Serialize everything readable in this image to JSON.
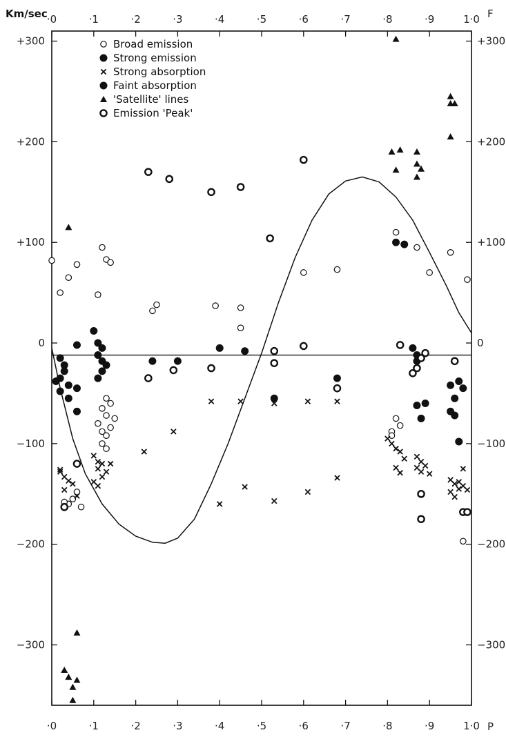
{
  "chart_data": {
    "type": "scatter",
    "title": "",
    "y_unit": "Km/sec",
    "x_end_top": "F",
    "x_end_bottom": "P",
    "xlim": [
      0,
      1.0
    ],
    "ylim": [
      -360,
      310
    ],
    "x_ticks": [
      {
        "v": 0.0,
        "label": "·0"
      },
      {
        "v": 0.1,
        "label": "·1"
      },
      {
        "v": 0.2,
        "label": "·2"
      },
      {
        "v": 0.3,
        "label": "·3"
      },
      {
        "v": 0.4,
        "label": "·4"
      },
      {
        "v": 0.5,
        "label": "·5"
      },
      {
        "v": 0.6,
        "label": "·6"
      },
      {
        "v": 0.7,
        "label": "·7"
      },
      {
        "v": 0.8,
        "label": "·8"
      },
      {
        "v": 0.9,
        "label": "·9"
      },
      {
        "v": 1.0,
        "label": "1·0"
      }
    ],
    "y_ticks": [
      {
        "v": 300,
        "label": "+300"
      },
      {
        "v": 200,
        "label": "+200"
      },
      {
        "v": 100,
        "label": "+100"
      },
      {
        "v": 0,
        "label": "0"
      },
      {
        "v": -100,
        "label": "−100"
      },
      {
        "v": -200,
        "label": "−200"
      },
      {
        "v": -300,
        "label": "−300"
      }
    ],
    "right_y_ticks": [
      {
        "v": 300,
        "label": "+300"
      },
      {
        "v": 200,
        "label": "+200"
      },
      {
        "v": 100,
        "label": "+100"
      },
      {
        "v": 0,
        "label": "0"
      },
      {
        "v": -100,
        "label": "−100"
      },
      {
        "v": -200,
        "label": "−200"
      },
      {
        "v": -300,
        "label": "−300"
      }
    ],
    "systemic_velocity": -12,
    "velocity_curve": [
      [
        0.0,
        -5
      ],
      [
        0.02,
        -45
      ],
      [
        0.05,
        -95
      ],
      [
        0.08,
        -130
      ],
      [
        0.12,
        -160
      ],
      [
        0.16,
        -180
      ],
      [
        0.2,
        -192
      ],
      [
        0.24,
        -198
      ],
      [
        0.27,
        -199
      ],
      [
        0.3,
        -194
      ],
      [
        0.34,
        -175
      ],
      [
        0.38,
        -140
      ],
      [
        0.42,
        -100
      ],
      [
        0.46,
        -55
      ],
      [
        0.5,
        -10
      ],
      [
        0.54,
        40
      ],
      [
        0.58,
        85
      ],
      [
        0.62,
        122
      ],
      [
        0.66,
        148
      ],
      [
        0.7,
        161
      ],
      [
        0.74,
        165
      ],
      [
        0.78,
        160
      ],
      [
        0.82,
        145
      ],
      [
        0.86,
        122
      ],
      [
        0.9,
        90
      ],
      [
        0.94,
        57
      ],
      [
        0.97,
        30
      ],
      [
        1.0,
        10
      ]
    ],
    "legend": [
      {
        "marker": "circle-open",
        "label": "Broad emission"
      },
      {
        "marker": "circle-filled",
        "label": "Strong emission"
      },
      {
        "marker": "cross",
        "label": "Strong absorption"
      },
      {
        "marker": "circle-filled",
        "label": "Faint absorption"
      },
      {
        "marker": "triangle",
        "label": "'Satellite' lines"
      },
      {
        "marker": "circle-thick",
        "label": "Emission 'Peak'"
      }
    ],
    "series": [
      {
        "marker": "circle-open",
        "points": [
          [
            0.0,
            82
          ],
          [
            0.02,
            50
          ],
          [
            0.04,
            65
          ],
          [
            0.06,
            78
          ],
          [
            0.11,
            48
          ],
          [
            0.12,
            95
          ],
          [
            0.13,
            83
          ],
          [
            0.14,
            80
          ],
          [
            0.24,
            32
          ],
          [
            0.25,
            38
          ],
          [
            0.39,
            37
          ],
          [
            0.45,
            35
          ],
          [
            0.45,
            15
          ],
          [
            0.6,
            70
          ],
          [
            0.68,
            73
          ],
          [
            0.82,
            110
          ],
          [
            0.82,
            -75
          ],
          [
            0.83,
            -82
          ],
          [
            0.81,
            -88
          ],
          [
            0.81,
            -92
          ],
          [
            0.87,
            95
          ],
          [
            0.9,
            70
          ],
          [
            0.95,
            90
          ],
          [
            0.99,
            63
          ],
          [
            0.13,
            -55
          ],
          [
            0.14,
            -60
          ],
          [
            0.12,
            -65
          ],
          [
            0.13,
            -72
          ],
          [
            0.11,
            -80
          ],
          [
            0.14,
            -84
          ],
          [
            0.12,
            -88
          ],
          [
            0.13,
            -92
          ],
          [
            0.12,
            -100
          ],
          [
            0.13,
            -105
          ],
          [
            0.15,
            -75
          ],
          [
            0.06,
            -148
          ],
          [
            0.04,
            -160
          ],
          [
            0.05,
            -155
          ],
          [
            0.03,
            -158
          ],
          [
            0.07,
            -163
          ],
          [
            0.98,
            -197
          ]
        ]
      },
      {
        "marker": "circle-filled",
        "points": [
          [
            0.02,
            -15
          ],
          [
            0.03,
            -22
          ],
          [
            0.03,
            -28
          ],
          [
            0.02,
            -35
          ],
          [
            0.01,
            -38
          ],
          [
            0.04,
            -42
          ],
          [
            0.02,
            -48
          ],
          [
            0.04,
            -55
          ],
          [
            0.06,
            -45
          ],
          [
            0.06,
            -68
          ],
          [
            0.1,
            12
          ],
          [
            0.11,
            0
          ],
          [
            0.12,
            -5
          ],
          [
            0.11,
            -12
          ],
          [
            0.12,
            -18
          ],
          [
            0.13,
            -22
          ],
          [
            0.12,
            -28
          ],
          [
            0.11,
            -35
          ],
          [
            0.06,
            -2
          ],
          [
            0.24,
            -18
          ],
          [
            0.3,
            -18
          ],
          [
            0.4,
            -5
          ],
          [
            0.46,
            -8
          ],
          [
            0.53,
            -55
          ],
          [
            0.68,
            -35
          ],
          [
            0.82,
            100
          ],
          [
            0.84,
            98
          ],
          [
            0.87,
            -62
          ],
          [
            0.88,
            -75
          ],
          [
            0.89,
            -60
          ],
          [
            0.86,
            -5
          ],
          [
            0.87,
            -12
          ],
          [
            0.87,
            -18
          ],
          [
            0.95,
            -42
          ],
          [
            0.96,
            -55
          ],
          [
            0.95,
            -68
          ],
          [
            0.96,
            -72
          ],
          [
            0.97,
            -98
          ],
          [
            0.98,
            -45
          ],
          [
            0.97,
            -38
          ]
        ]
      },
      {
        "marker": "cross",
        "points": [
          [
            0.22,
            -108
          ],
          [
            0.29,
            -88
          ],
          [
            0.38,
            -58
          ],
          [
            0.4,
            -160
          ],
          [
            0.45,
            -58
          ],
          [
            0.46,
            -143
          ],
          [
            0.53,
            -157
          ],
          [
            0.53,
            -60
          ],
          [
            0.61,
            -58
          ],
          [
            0.61,
            -148
          ],
          [
            0.68,
            -58
          ],
          [
            0.68,
            -134
          ],
          [
            0.02,
            -128
          ],
          [
            0.03,
            -133
          ],
          [
            0.04,
            -137
          ],
          [
            0.05,
            -140
          ],
          [
            0.03,
            -146
          ],
          [
            0.06,
            -152
          ],
          [
            0.02,
            -126
          ],
          [
            0.1,
            -112
          ],
          [
            0.11,
            -118
          ],
          [
            0.12,
            -120
          ],
          [
            0.11,
            -125
          ],
          [
            0.13,
            -128
          ],
          [
            0.12,
            -133
          ],
          [
            0.1,
            -138
          ],
          [
            0.11,
            -142
          ],
          [
            0.14,
            -120
          ],
          [
            0.8,
            -95
          ],
          [
            0.81,
            -100
          ],
          [
            0.82,
            -105
          ],
          [
            0.83,
            -108
          ],
          [
            0.82,
            -124
          ],
          [
            0.83,
            -129
          ],
          [
            0.84,
            -115
          ],
          [
            0.87,
            -113
          ],
          [
            0.88,
            -118
          ],
          [
            0.87,
            -124
          ],
          [
            0.88,
            -128
          ],
          [
            0.89,
            -122
          ],
          [
            0.9,
            -130
          ],
          [
            0.95,
            -136
          ],
          [
            0.96,
            -140
          ],
          [
            0.97,
            -138
          ],
          [
            0.95,
            -148
          ],
          [
            0.96,
            -153
          ],
          [
            0.97,
            -145
          ],
          [
            0.98,
            -142
          ],
          [
            0.99,
            -146
          ],
          [
            0.98,
            -125
          ]
        ]
      },
      {
        "marker": "triangle",
        "points": [
          [
            0.04,
            115
          ],
          [
            0.82,
            302
          ],
          [
            0.81,
            190
          ],
          [
            0.82,
            172
          ],
          [
            0.83,
            192
          ],
          [
            0.87,
            178
          ],
          [
            0.88,
            173
          ],
          [
            0.87,
            190
          ],
          [
            0.87,
            165
          ],
          [
            0.95,
            245
          ],
          [
            0.95,
            238
          ],
          [
            0.96,
            238
          ],
          [
            0.95,
            205
          ],
          [
            0.06,
            -288
          ],
          [
            0.03,
            -325
          ],
          [
            0.04,
            -332
          ],
          [
            0.06,
            -335
          ],
          [
            0.05,
            -342
          ],
          [
            0.05,
            -355
          ]
        ]
      },
      {
        "marker": "circle-thick",
        "points": [
          [
            0.23,
            170
          ],
          [
            0.28,
            163
          ],
          [
            0.38,
            150
          ],
          [
            0.45,
            155
          ],
          [
            0.52,
            104
          ],
          [
            0.6,
            182
          ],
          [
            0.23,
            -35
          ],
          [
            0.29,
            -27
          ],
          [
            0.38,
            -25
          ],
          [
            0.53,
            -20
          ],
          [
            0.6,
            -3
          ],
          [
            0.68,
            -45
          ],
          [
            0.53,
            -8
          ],
          [
            0.83,
            -2
          ],
          [
            0.86,
            -30
          ],
          [
            0.87,
            -25
          ],
          [
            0.88,
            -15
          ],
          [
            0.89,
            -10
          ],
          [
            0.88,
            -150
          ],
          [
            0.88,
            -175
          ],
          [
            0.96,
            -18
          ],
          [
            0.98,
            -168
          ],
          [
            0.99,
            -168
          ],
          [
            0.03,
            -163
          ],
          [
            0.06,
            -120
          ]
        ]
      }
    ]
  }
}
